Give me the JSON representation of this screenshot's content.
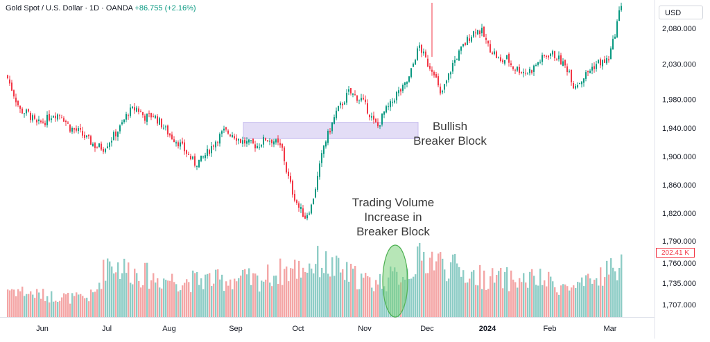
{
  "header": {
    "symbol_line": "Gold Spot / U.S. Dollar · 1D · OANDA",
    "change": "+86.755 (+2.16%)"
  },
  "currency_button": "USD",
  "annotations": {
    "breaker_block": [
      "Bullish",
      "Breaker Block"
    ],
    "volume_note": [
      "Trading Volume",
      "Increase in",
      "Breaker Block"
    ]
  },
  "volume_badge": "202.41 K",
  "colors": {
    "up": "#089981",
    "down": "#f23645",
    "vol_up": "#8ecdc6",
    "vol_down": "#f4a6a6",
    "breaker_zone": "#d9d2f3",
    "highlight_ellipse": "#7bd17b"
  },
  "chart_data": {
    "type": "candlestick",
    "price_axis": {
      "ticks": [
        "2,080.000",
        "2,030.000",
        "1,980.000",
        "1,940.000",
        "1,900.000",
        "1,860.000",
        "1,820.000",
        "1,790.000",
        "1,760.000",
        "1,735.000",
        "1,707.000"
      ]
    },
    "x_tick_labels": [
      "Jun",
      "Jul",
      "Aug",
      "Sep",
      "Oct",
      "Nov",
      "Dec",
      "2024",
      "Feb",
      "Mar"
    ],
    "close_path": [
      [
        0,
        2010
      ],
      [
        6,
        1965
      ],
      [
        10,
        1960
      ],
      [
        14,
        1945
      ],
      [
        18,
        1950
      ],
      [
        22,
        1960
      ],
      [
        26,
        1958
      ],
      [
        30,
        1940
      ],
      [
        34,
        1935
      ],
      [
        38,
        1925
      ],
      [
        42,
        1915
      ],
      [
        46,
        1912
      ],
      [
        50,
        1925
      ],
      [
        54,
        1940
      ],
      [
        58,
        1962
      ],
      [
        62,
        1968
      ],
      [
        66,
        1955
      ],
      [
        70,
        1958
      ],
      [
        74,
        1945
      ],
      [
        78,
        1930
      ],
      [
        82,
        1920
      ],
      [
        86,
        1905
      ],
      [
        90,
        1890
      ],
      [
        93,
        1895
      ],
      [
        96,
        1905
      ],
      [
        100,
        1922
      ],
      [
        104,
        1935
      ],
      [
        108,
        1932
      ],
      [
        112,
        1922
      ],
      [
        116,
        1918
      ],
      [
        120,
        1915
      ],
      [
        124,
        1925
      ],
      [
        128,
        1922
      ],
      [
        132,
        1910
      ],
      [
        134,
        1880
      ],
      [
        137,
        1850
      ],
      [
        140,
        1828
      ],
      [
        143,
        1815
      ],
      [
        146,
        1830
      ],
      [
        149,
        1870
      ],
      [
        152,
        1915
      ],
      [
        155,
        1938
      ],
      [
        158,
        1962
      ],
      [
        161,
        1975
      ],
      [
        164,
        1990
      ],
      [
        167,
        1985
      ],
      [
        170,
        1980
      ],
      [
        173,
        1966
      ],
      [
        176,
        1948
      ],
      [
        178,
        1942
      ],
      [
        181,
        1962
      ],
      [
        184,
        1972
      ],
      [
        187,
        1988
      ],
      [
        190,
        1995
      ],
      [
        193,
        2010
      ],
      [
        196,
        2040
      ],
      [
        198,
        2055
      ],
      [
        200,
        2042
      ],
      [
        202,
        2030
      ],
      [
        205,
        2020
      ],
      [
        208,
        1985
      ],
      [
        211,
        2005
      ],
      [
        214,
        2030
      ],
      [
        218,
        2050
      ],
      [
        222,
        2068
      ],
      [
        225,
        2078
      ],
      [
        228,
        2075
      ],
      [
        231,
        2055
      ],
      [
        234,
        2045
      ],
      [
        237,
        2032
      ],
      [
        240,
        2038
      ],
      [
        243,
        2025
      ],
      [
        246,
        2022
      ],
      [
        249,
        2018
      ],
      [
        252,
        2022
      ],
      [
        255,
        2032
      ],
      [
        258,
        2040
      ],
      [
        261,
        2045
      ],
      [
        264,
        2040
      ],
      [
        267,
        2030
      ],
      [
        270,
        2020
      ],
      [
        272,
        2000
      ],
      [
        275,
        2005
      ],
      [
        278,
        2015
      ],
      [
        281,
        2025
      ],
      [
        284,
        2032
      ],
      [
        287,
        2032
      ],
      [
        289,
        2038
      ],
      [
        291,
        2060
      ],
      [
        293,
        2088
      ],
      [
        295,
        2115
      ]
    ],
    "volume_path": [
      [
        0,
        30
      ],
      [
        6,
        28
      ],
      [
        10,
        25
      ],
      [
        14,
        24
      ],
      [
        20,
        22
      ],
      [
        26,
        22
      ],
      [
        30,
        20
      ],
      [
        35,
        20
      ],
      [
        39,
        21
      ],
      [
        42,
        25
      ],
      [
        45,
        42
      ],
      [
        48,
        60
      ],
      [
        54,
        52
      ],
      [
        60,
        48
      ],
      [
        66,
        44
      ],
      [
        72,
        40
      ],
      [
        78,
        40
      ],
      [
        84,
        38
      ],
      [
        90,
        38
      ],
      [
        96,
        40
      ],
      [
        102,
        38
      ],
      [
        108,
        40
      ],
      [
        114,
        40
      ],
      [
        120,
        38
      ],
      [
        126,
        44
      ],
      [
        132,
        48
      ],
      [
        138,
        50
      ],
      [
        144,
        54
      ],
      [
        150,
        58
      ],
      [
        156,
        52
      ],
      [
        162,
        46
      ],
      [
        168,
        42
      ],
      [
        174,
        36
      ],
      [
        180,
        38
      ],
      [
        186,
        42
      ],
      [
        192,
        48
      ],
      [
        198,
        60
      ],
      [
        204,
        62
      ],
      [
        210,
        55
      ],
      [
        216,
        50
      ],
      [
        222,
        44
      ],
      [
        228,
        42
      ],
      [
        234,
        40
      ],
      [
        240,
        40
      ],
      [
        246,
        38
      ],
      [
        252,
        40
      ],
      [
        258,
        38
      ],
      [
        264,
        34
      ],
      [
        270,
        30
      ],
      [
        276,
        32
      ],
      [
        282,
        38
      ],
      [
        288,
        50
      ],
      [
        292,
        48
      ],
      [
        295,
        62
      ]
    ],
    "breaker_block": {
      "price_low": 1925,
      "price_high": 1948,
      "start_day": 112,
      "end_day": 196
    },
    "volume_highlight_day": 190
  }
}
